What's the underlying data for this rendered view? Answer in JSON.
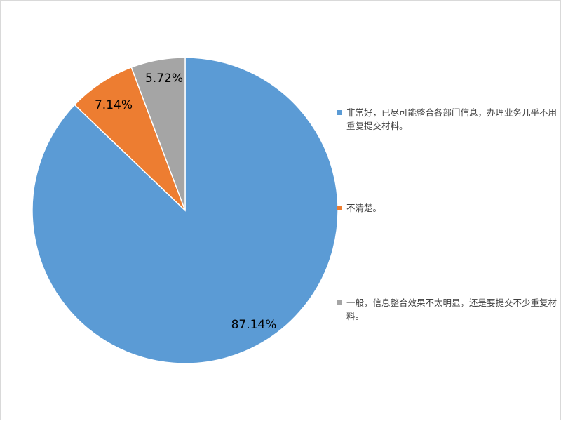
{
  "chart_data": {
    "type": "pie",
    "title": "",
    "legend_position": "right",
    "slices": [
      {
        "label": "非常好，已尽可能整合各部门信息，办理业务几乎不用重复提交材料。",
        "value": 87.14,
        "value_label": "87.14%",
        "color": "#5b9bd5"
      },
      {
        "label": "不清楚。",
        "value": 7.14,
        "value_label": "7.14%",
        "color": "#ed7d31"
      },
      {
        "label": "一般，信息整合效果不太明显，还是要提交不少重复材料。",
        "value": 5.72,
        "value_label": "5.72%",
        "color": "#a5a5a5"
      }
    ]
  }
}
